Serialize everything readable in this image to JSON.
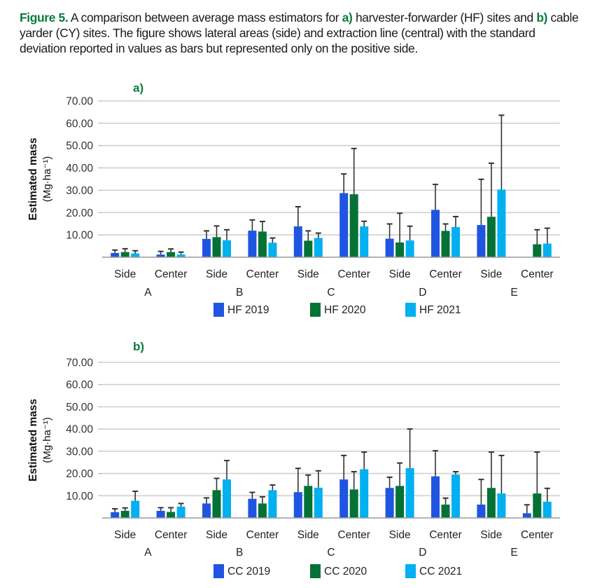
{
  "caption": {
    "label": "Figure 5.",
    "part1": " A comparison between average mass estimators for ",
    "a_label": "a)",
    "part2": " harvester-forwarder (HF) sites and ",
    "b_label": "b)",
    "part3": " cable yarder (CY) sites. The figure shows lateral areas (side) and extraction line (central) with the standard deviation reported in values as bars but represented only on the positive side."
  },
  "colors": {
    "y2019": "#1f55e0",
    "y2020": "#047235",
    "y2021": "#00b0f0",
    "grid": "#d0d0d0",
    "axis": "#9a9a9a",
    "error": "#333333",
    "accent": "#0a7a3c"
  },
  "chart_data": [
    {
      "type": "bar",
      "panel": "a)",
      "title": "",
      "ylabel": "Estimated mass",
      "ylabel_unit": "(Mg·ha⁻¹)",
      "ylim": [
        0,
        70
      ],
      "yticks": [
        "10.00",
        "20.00",
        "30.00",
        "40.00",
        "50.00",
        "60.00",
        "70.00"
      ],
      "grid": true,
      "legend_position": "bottom",
      "categories": [
        "Side",
        "Center",
        "Side",
        "Center",
        "Side",
        "Center",
        "Side",
        "Center",
        "Side",
        "Center"
      ],
      "groups": [
        "A",
        "B",
        "C",
        "D",
        "E"
      ],
      "series": [
        {
          "name": "HF 2019",
          "values": [
            1.9,
            1.2,
            8.2,
            11.9,
            13.8,
            28.7,
            8.3,
            21.2,
            14.4,
            0
          ],
          "error_top": [
            3.2,
            2.6,
            11.8,
            16.7,
            22.6,
            37.3,
            14.9,
            32.6,
            34.9,
            null
          ]
        },
        {
          "name": "HF 2020",
          "values": [
            2.3,
            2.3,
            9.0,
            11.5,
            7.4,
            28.2,
            6.6,
            11.8,
            18.1,
            5.8
          ],
          "error_top": [
            3.8,
            3.7,
            14.0,
            16.0,
            11.8,
            48.7,
            19.7,
            14.9,
            42.1,
            12.3
          ]
        },
        {
          "name": "HF 2021",
          "values": [
            1.7,
            1.2,
            7.6,
            6.5,
            8.6,
            13.8,
            7.5,
            13.5,
            30.3,
            6.1
          ],
          "error_top": [
            2.9,
            2.3,
            12.3,
            8.6,
            10.8,
            16.1,
            13.9,
            18.2,
            63.6,
            13.0
          ]
        }
      ]
    },
    {
      "type": "bar",
      "panel": "b)",
      "title": "",
      "ylabel": "Estimated mass",
      "ylabel_unit": "(Mg·ha⁻¹)",
      "ylim": [
        0,
        70
      ],
      "yticks": [
        "10.00",
        "20.00",
        "30.00",
        "40.00",
        "50.00",
        "60.00",
        "70.00"
      ],
      "grid": true,
      "legend_position": "bottom",
      "categories": [
        "Side",
        "Center",
        "Side",
        "Center",
        "Side",
        "Center",
        "Side",
        "Center",
        "Side",
        "Center"
      ],
      "groups": [
        "A",
        "B",
        "C",
        "D",
        "E"
      ],
      "series": [
        {
          "name": "CC 2019",
          "values": [
            2.6,
            3.2,
            6.5,
            8.6,
            11.6,
            17.3,
            13.5,
            18.7,
            6.0,
            2.1
          ],
          "error_top": [
            4.1,
            4.6,
            9.0,
            11.5,
            22.3,
            28.1,
            18.3,
            30.2,
            17.3,
            5.9
          ]
        },
        {
          "name": "CC 2020",
          "values": [
            3.2,
            2.7,
            12.5,
            6.5,
            14.4,
            12.8,
            14.4,
            6.0,
            13.5,
            11.0
          ],
          "error_top": [
            4.5,
            4.6,
            17.8,
            9.5,
            19.3,
            20.8,
            24.7,
            8.9,
            29.6,
            29.6
          ]
        },
        {
          "name": "CC 2021",
          "values": [
            7.7,
            5.1,
            17.3,
            12.5,
            13.6,
            21.9,
            22.4,
            19.5,
            11.0,
            7.3
          ],
          "error_top": [
            12.0,
            6.5,
            25.8,
            14.8,
            21.2,
            29.6,
            40.0,
            20.8,
            28.1,
            13.3
          ]
        }
      ]
    }
  ]
}
